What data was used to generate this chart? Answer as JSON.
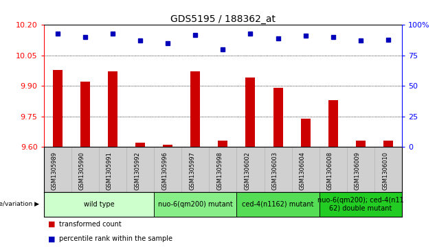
{
  "title": "GDS5195 / 188362_at",
  "samples": [
    "GSM1305989",
    "GSM1305990",
    "GSM1305991",
    "GSM1305992",
    "GSM1305996",
    "GSM1305997",
    "GSM1305998",
    "GSM1306002",
    "GSM1306003",
    "GSM1306004",
    "GSM1306008",
    "GSM1306009",
    "GSM1306010"
  ],
  "transformed_count": [
    9.98,
    9.92,
    9.97,
    9.62,
    9.61,
    9.97,
    9.63,
    9.94,
    9.89,
    9.74,
    9.83,
    9.63,
    9.63
  ],
  "percentile_rank": [
    93,
    90,
    93,
    87,
    85,
    92,
    80,
    93,
    89,
    91,
    90,
    87,
    88
  ],
  "ylim_left": [
    9.6,
    10.2
  ],
  "ylim_right": [
    0,
    100
  ],
  "yticks_left": [
    9.6,
    9.75,
    9.9,
    10.05,
    10.2
  ],
  "yticks_right": [
    0,
    25,
    50,
    75,
    100
  ],
  "bar_color": "#cc0000",
  "dot_color": "#0000bb",
  "grid_color": "#000000",
  "background_color": "#ffffff",
  "plot_bg_color": "#ffffff",
  "sample_row_bg": "#d0d0d0",
  "groups": [
    {
      "label": "wild type",
      "start": 0,
      "end": 3,
      "color": "#ccffcc"
    },
    {
      "label": "nuo-6(qm200) mutant",
      "start": 4,
      "end": 6,
      "color": "#88ee88"
    },
    {
      "label": "ced-4(n1162) mutant",
      "start": 7,
      "end": 9,
      "color": "#55dd55"
    },
    {
      "label": "nuo-6(qm200); ced-4(n11\n62) double mutant",
      "start": 10,
      "end": 12,
      "color": "#22cc22"
    }
  ],
  "legend_bar_label": "transformed count",
  "legend_dot_label": "percentile rank within the sample",
  "genotype_label": "genotype/variation",
  "base_value": 9.6,
  "title_fontsize": 10,
  "tick_fontsize": 8,
  "sample_fontsize": 6,
  "group_fontsize": 7,
  "legend_fontsize": 7
}
